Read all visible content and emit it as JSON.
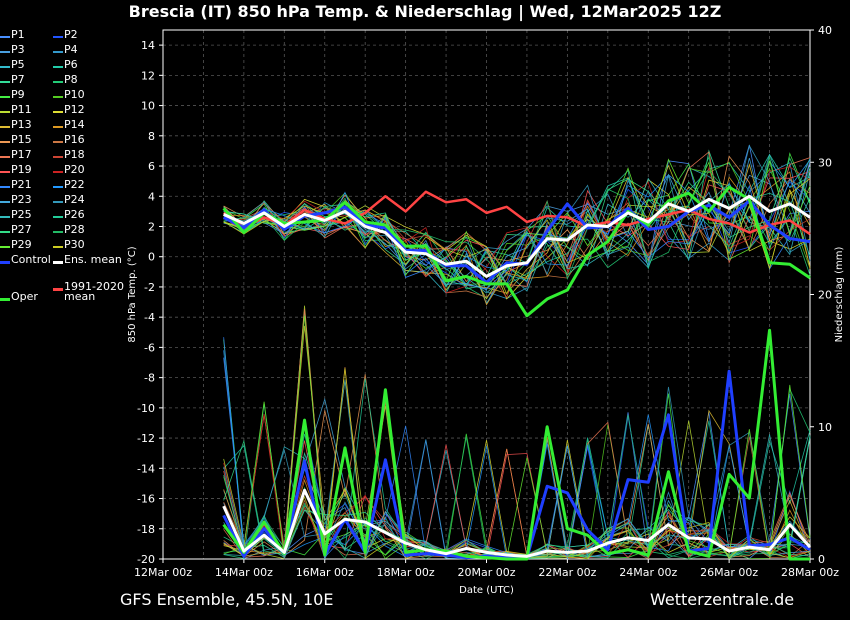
{
  "title": "Brescia  (IT)  850 hPa Temp. & Niederschlag | Wed, 12Mar2025 12Z",
  "footer_left": "GFS Ensemble, 45.5N, 10E",
  "footer_right": "Wetterzentrale.de",
  "legend": [
    {
      "name": "P1",
      "color": "#4a90ff"
    },
    {
      "name": "P2",
      "color": "#2255ff"
    },
    {
      "name": "P3",
      "color": "#4aa0e0"
    },
    {
      "name": "P4",
      "color": "#3399cc"
    },
    {
      "name": "P5",
      "color": "#33bbcc"
    },
    {
      "name": "P6",
      "color": "#22ccaa"
    },
    {
      "name": "P7",
      "color": "#33dd99"
    },
    {
      "name": "P8",
      "color": "#22cc77"
    },
    {
      "name": "P9",
      "color": "#44ee44"
    },
    {
      "name": "P10",
      "color": "#55cc22"
    },
    {
      "name": "P11",
      "color": "#bbdd33"
    },
    {
      "name": "P12",
      "color": "#dddd33"
    },
    {
      "name": "P13",
      "color": "#ddbb33"
    },
    {
      "name": "P14",
      "color": "#dd9922"
    },
    {
      "name": "P15",
      "color": "#ee9955"
    },
    {
      "name": "P16",
      "color": "#cc7744"
    },
    {
      "name": "P17",
      "color": "#ee7755"
    },
    {
      "name": "P18",
      "color": "#cc4433"
    },
    {
      "name": "P19",
      "color": "#ff5555"
    },
    {
      "name": "P20",
      "color": "#cc2222"
    },
    {
      "name": "P21",
      "color": "#3388ff"
    },
    {
      "name": "P22",
      "color": "#2299ff"
    },
    {
      "name": "P23",
      "color": "#44aadd"
    },
    {
      "name": "P24",
      "color": "#3399bb"
    },
    {
      "name": "P25",
      "color": "#33bbbb"
    },
    {
      "name": "P26",
      "color": "#22cc99"
    },
    {
      "name": "P27",
      "color": "#33dd88"
    },
    {
      "name": "P28",
      "color": "#22bb66"
    },
    {
      "name": "P29",
      "color": "#66ee33"
    },
    {
      "name": "P30",
      "color": "#cccc22"
    },
    {
      "name": "Control",
      "color": "#1f3fff"
    },
    {
      "name": "Ens. mean",
      "color": "#ffffff"
    },
    {
      "name": "Oper",
      "color": "#33ee33"
    },
    {
      "name": "1991-2020\nmean",
      "color": "#ff4444"
    }
  ],
  "chart_data": {
    "type": "line",
    "xlabel": "Date (UTC)",
    "ylabel_left": "850 hPa Temp. (°C)",
    "ylabel_right": "Niederschlag (mm)",
    "x_range": [
      "2025-03-12 00:00",
      "2025-03-28 00:00"
    ],
    "x_ticks": [
      "12Mar 00z",
      "14Mar 00z",
      "16Mar 00z",
      "18Mar 00z",
      "20Mar 00z",
      "22Mar 00z",
      "24Mar 00z",
      "26Mar 00z",
      "28Mar 00z"
    ],
    "ylim_left": [
      -20,
      15
    ],
    "ylim_right": [
      0,
      40
    ],
    "yticks_left": [
      14,
      12,
      10,
      8,
      6,
      4,
      2,
      0,
      -2,
      -4,
      -6,
      -8,
      -10,
      -12,
      -14,
      -16,
      -18,
      -20
    ],
    "yticks_right": [
      40,
      30,
      20,
      10,
      0
    ],
    "grid": true,
    "x_days": [
      1.5,
      2,
      2.5,
      3,
      3.5,
      4,
      4.5,
      5,
      5.5,
      6,
      6.5,
      7,
      7.5,
      8,
      8.5,
      9,
      9.5,
      10,
      10.5,
      11,
      11.5,
      12,
      12.5,
      13,
      13.5,
      14,
      14.5,
      15,
      15.5,
      16
    ],
    "ens_mean_temp": [
      2.8,
      2.2,
      2.9,
      2.0,
      2.8,
      2.4,
      3.0,
      2.0,
      1.6,
      0.3,
      0.2,
      -0.5,
      -0.3,
      -1.3,
      -0.6,
      -0.4,
      1.2,
      1.1,
      2.1,
      2.0,
      2.9,
      2.3,
      3.5,
      3.0,
      3.8,
      3.2,
      4.0,
      3.0,
      3.5,
      2.6
    ],
    "oper_temp": [
      3.2,
      1.6,
      2.9,
      2.2,
      2.3,
      2.4,
      3.6,
      2.3,
      2.1,
      0.7,
      0.7,
      -1.6,
      -1.3,
      -1.8,
      -1.8,
      -3.9,
      -2.8,
      -2.2,
      0.1,
      1.0,
      3.0,
      2.1,
      3.7,
      4.2,
      3.0,
      4.6,
      3.8,
      -0.4,
      -0.5,
      -1.4
    ],
    "control_temp": [
      2.6,
      1.9,
      3.1,
      1.8,
      2.7,
      2.9,
      3.3,
      2.1,
      1.9,
      0.4,
      0.4,
      -0.6,
      -0.6,
      -1.7,
      -0.4,
      -0.5,
      1.7,
      3.5,
      1.9,
      2.0,
      3.2,
      1.8,
      2.0,
      3.0,
      3.4,
      2.6,
      3.7,
      2.1,
      1.2,
      1.0
    ],
    "climate_mean_temp": [
      2.9,
      1.9,
      2.6,
      2.1,
      3.1,
      2.5,
      2.2,
      2.9,
      4.0,
      3.0,
      4.3,
      3.6,
      3.8,
      2.9,
      3.3,
      2.3,
      2.7,
      2.6,
      2.0,
      2.3,
      2.1,
      2.5,
      2.8,
      3.1,
      2.5,
      2.2,
      1.6,
      2.1,
      2.4,
      1.5
    ],
    "ens_mean_precip": [
      4.0,
      0.6,
      1.8,
      0.5,
      5.2,
      1.9,
      3.0,
      2.8,
      2.0,
      1.2,
      0.7,
      0.4,
      0.8,
      0.5,
      0.3,
      0.2,
      0.6,
      0.5,
      0.6,
      1.2,
      1.6,
      1.4,
      2.6,
      1.6,
      1.5,
      0.6,
      0.9,
      0.7,
      2.6,
      0.9
    ],
    "oper_precip": [
      2.6,
      0.5,
      2.8,
      0.4,
      10.5,
      0.3,
      8.4,
      0.5,
      12.8,
      0.5,
      0.7,
      0.6,
      0.2,
      0.1,
      0.0,
      0.0,
      10.0,
      2.3,
      1.8,
      0.4,
      0.7,
      0.3,
      6.6,
      0.6,
      0.2,
      6.4,
      4.6,
      17.3,
      0.0,
      0.0
    ],
    "control_precip": [
      3.3,
      0.2,
      2.3,
      0.4,
      7.4,
      0.3,
      3.0,
      0.5,
      7.5,
      0.3,
      0.4,
      0.3,
      0.1,
      0.2,
      0.1,
      0.1,
      5.5,
      5.0,
      2.2,
      0.7,
      6.0,
      5.8,
      10.9,
      0.6,
      0.8,
      14.2,
      1.0,
      1.1,
      1.6,
      0.7
    ]
  }
}
